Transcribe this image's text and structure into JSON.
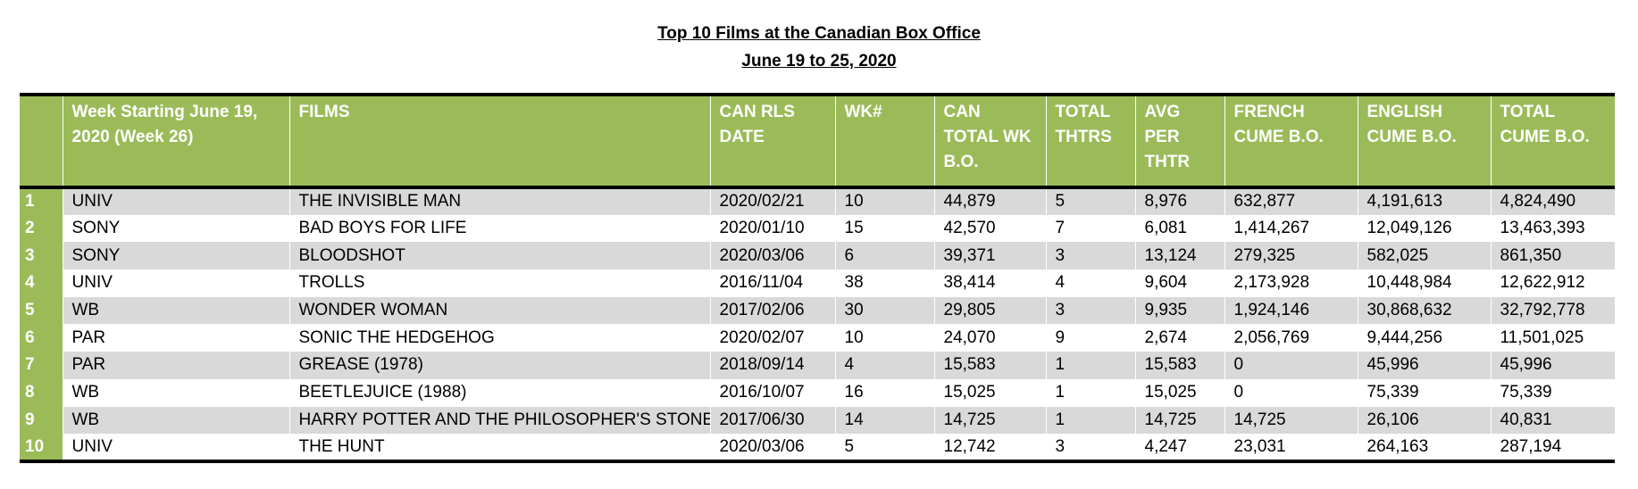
{
  "title": {
    "line1": "Top 10 Films at the Canadian Box Office",
    "line2": "June 19 to 25, 2020"
  },
  "table": {
    "headers": {
      "distributor": "Week Starting June 19, 2020 (Week  26)",
      "film": "FILMS",
      "release": "CAN RLS DATE",
      "week": "WK#",
      "weekly_bo": "CAN TOTAL WK B.O.",
      "theatres": "TOTAL THTRS",
      "avg": "AVG PER THTR",
      "french": "FRENCH CUME B.O.",
      "english": "ENGLISH CUME B.O.",
      "total": "TOTAL CUME B.O."
    },
    "rows": [
      {
        "rank": "1",
        "distributor": "UNIV",
        "film": "THE INVISIBLE MAN",
        "release": "2020/02/21",
        "week": "10",
        "weekly_bo": "44,879",
        "theatres": "5",
        "avg": "8,976",
        "french": "632,877",
        "english": "4,191,613",
        "total": "4,824,490"
      },
      {
        "rank": "2",
        "distributor": "SONY",
        "film": "BAD BOYS FOR LIFE",
        "release": "2020/01/10",
        "week": "15",
        "weekly_bo": "42,570",
        "theatres": "7",
        "avg": "6,081",
        "french": "1,414,267",
        "english": "12,049,126",
        "total": "13,463,393"
      },
      {
        "rank": "3",
        "distributor": "SONY",
        "film": "BLOODSHOT",
        "release": "2020/03/06",
        "week": "6",
        "weekly_bo": "39,371",
        "theatres": "3",
        "avg": "13,124",
        "french": "279,325",
        "english": "582,025",
        "total": "861,350"
      },
      {
        "rank": "4",
        "distributor": "UNIV",
        "film": "TROLLS",
        "release": "2016/11/04",
        "week": "38",
        "weekly_bo": "38,414",
        "theatres": "4",
        "avg": "9,604",
        "french": "2,173,928",
        "english": "10,448,984",
        "total": "12,622,912"
      },
      {
        "rank": "5",
        "distributor": "WB",
        "film": "WONDER WOMAN",
        "release": "2017/02/06",
        "week": "30",
        "weekly_bo": "29,805",
        "theatres": "3",
        "avg": "9,935",
        "french": "1,924,146",
        "english": "30,868,632",
        "total": "32,792,778"
      },
      {
        "rank": "6",
        "distributor": "PAR",
        "film": "SONIC THE HEDGEHOG",
        "release": "2020/02/07",
        "week": "10",
        "weekly_bo": "24,070",
        "theatres": "9",
        "avg": "2,674",
        "french": "2,056,769",
        "english": "9,444,256",
        "total": "11,501,025"
      },
      {
        "rank": "7",
        "distributor": "PAR",
        "film": "GREASE (1978)",
        "release": "2018/09/14",
        "week": "4",
        "weekly_bo": "15,583",
        "theatres": "1",
        "avg": "15,583",
        "french": "0",
        "english": "45,996",
        "total": "45,996"
      },
      {
        "rank": "8",
        "distributor": "WB",
        "film": "BEETLEJUICE (1988)",
        "release": "2016/10/07",
        "week": "16",
        "weekly_bo": "15,025",
        "theatres": "1",
        "avg": "15,025",
        "french": "0",
        "english": "75,339",
        "total": "75,339"
      },
      {
        "rank": "9",
        "distributor": "WB",
        "film": "HARRY POTTER AND THE PHILOSOPHER'S STONE",
        "release": "2017/06/30",
        "week": "14",
        "weekly_bo": "14,725",
        "theatres": "1",
        "avg": "14,725",
        "french": "14,725",
        "english": "26,106",
        "total": "40,831"
      },
      {
        "rank": "10",
        "distributor": "UNIV",
        "film": "THE HUNT",
        "release": "2020/03/06",
        "week": "5",
        "weekly_bo": "12,742",
        "theatres": "3",
        "avg": "4,247",
        "french": "23,031",
        "english": "264,163",
        "total": "287,194"
      }
    ]
  },
  "colors": {
    "header_green": "#9bbb59",
    "stripe_gray": "#d9d9d9"
  }
}
